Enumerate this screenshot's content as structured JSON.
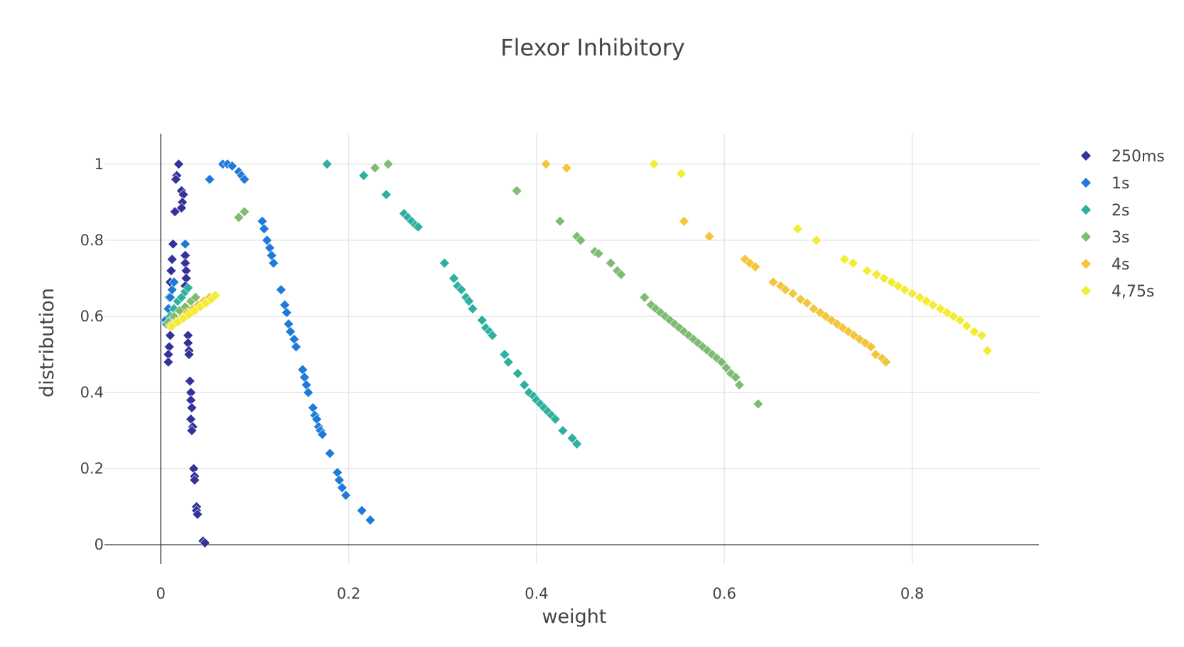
{
  "chart_data": {
    "type": "scatter",
    "title": "Flexor Inhibitory",
    "xlabel": "weight",
    "ylabel": "distribution",
    "xlim": [
      -0.06,
      0.935
    ],
    "ylim": [
      -0.05,
      1.08
    ],
    "xticks": [
      0,
      0.2,
      0.4,
      0.6,
      0.8
    ],
    "xtick_labels": [
      "0",
      "0.2",
      "0.4",
      "0.6",
      "0.8"
    ],
    "yticks": [
      0,
      0.2,
      0.4,
      0.6,
      0.8,
      1
    ],
    "ytick_labels": [
      "0",
      "0.2",
      "0.4",
      "0.6",
      "0.8",
      "1"
    ],
    "grid": true,
    "legend_position": "top-right",
    "marker": "diamond",
    "series": [
      {
        "name": "250ms",
        "color": "#33319a",
        "points": [
          [
            0.019,
            1.0
          ],
          [
            0.017,
            0.97
          ],
          [
            0.016,
            0.96
          ],
          [
            0.022,
            0.93
          ],
          [
            0.024,
            0.92
          ],
          [
            0.023,
            0.9
          ],
          [
            0.022,
            0.885
          ],
          [
            0.015,
            0.875
          ],
          [
            0.013,
            0.79
          ],
          [
            0.012,
            0.75
          ],
          [
            0.011,
            0.72
          ],
          [
            0.01,
            0.69
          ],
          [
            0.009,
            0.65
          ],
          [
            0.009,
            0.62
          ],
          [
            0.009,
            0.58
          ],
          [
            0.01,
            0.55
          ],
          [
            0.009,
            0.52
          ],
          [
            0.008,
            0.5
          ],
          [
            0.008,
            0.48
          ],
          [
            0.011,
            0.6
          ],
          [
            0.012,
            0.67
          ],
          [
            0.026,
            0.76
          ],
          [
            0.026,
            0.74
          ],
          [
            0.027,
            0.72
          ],
          [
            0.027,
            0.7
          ],
          [
            0.026,
            0.68
          ],
          [
            0.029,
            0.55
          ],
          [
            0.029,
            0.53
          ],
          [
            0.03,
            0.51
          ],
          [
            0.03,
            0.5
          ],
          [
            0.031,
            0.43
          ],
          [
            0.032,
            0.4
          ],
          [
            0.032,
            0.38
          ],
          [
            0.033,
            0.36
          ],
          [
            0.032,
            0.33
          ],
          [
            0.034,
            0.31
          ],
          [
            0.033,
            0.3
          ],
          [
            0.035,
            0.2
          ],
          [
            0.036,
            0.18
          ],
          [
            0.036,
            0.17
          ],
          [
            0.038,
            0.1
          ],
          [
            0.038,
            0.09
          ],
          [
            0.039,
            0.08
          ],
          [
            0.045,
            0.01
          ],
          [
            0.047,
            0.005
          ]
        ]
      },
      {
        "name": "1s",
        "color": "#1f7bd8",
        "points": [
          [
            0.052,
            0.96
          ],
          [
            0.066,
            1.0
          ],
          [
            0.071,
            1.0
          ],
          [
            0.076,
            0.995
          ],
          [
            0.083,
            0.98
          ],
          [
            0.086,
            0.97
          ],
          [
            0.089,
            0.96
          ],
          [
            0.108,
            0.85
          ],
          [
            0.11,
            0.83
          ],
          [
            0.113,
            0.8
          ],
          [
            0.116,
            0.78
          ],
          [
            0.118,
            0.76
          ],
          [
            0.12,
            0.74
          ],
          [
            0.128,
            0.67
          ],
          [
            0.132,
            0.63
          ],
          [
            0.134,
            0.61
          ],
          [
            0.136,
            0.58
          ],
          [
            0.138,
            0.56
          ],
          [
            0.142,
            0.54
          ],
          [
            0.144,
            0.52
          ],
          [
            0.151,
            0.46
          ],
          [
            0.153,
            0.44
          ],
          [
            0.155,
            0.42
          ],
          [
            0.157,
            0.4
          ],
          [
            0.162,
            0.36
          ],
          [
            0.164,
            0.34
          ],
          [
            0.166,
            0.33
          ],
          [
            0.168,
            0.31
          ],
          [
            0.17,
            0.3
          ],
          [
            0.172,
            0.29
          ],
          [
            0.18,
            0.24
          ],
          [
            0.188,
            0.19
          ],
          [
            0.19,
            0.17
          ],
          [
            0.193,
            0.15
          ],
          [
            0.197,
            0.13
          ],
          [
            0.214,
            0.09
          ],
          [
            0.223,
            0.065
          ],
          [
            0.005,
            0.59
          ],
          [
            0.008,
            0.62
          ],
          [
            0.01,
            0.65
          ],
          [
            0.012,
            0.67
          ],
          [
            0.014,
            0.69
          ],
          [
            0.026,
            0.79
          ]
        ]
      },
      {
        "name": "2s",
        "color": "#2db09e",
        "points": [
          [
            0.177,
            1.0
          ],
          [
            0.216,
            0.97
          ],
          [
            0.24,
            0.92
          ],
          [
            0.259,
            0.87
          ],
          [
            0.263,
            0.86
          ],
          [
            0.267,
            0.85
          ],
          [
            0.271,
            0.84
          ],
          [
            0.274,
            0.835
          ],
          [
            0.302,
            0.74
          ],
          [
            0.312,
            0.7
          ],
          [
            0.316,
            0.68
          ],
          [
            0.32,
            0.67
          ],
          [
            0.325,
            0.65
          ],
          [
            0.328,
            0.64
          ],
          [
            0.332,
            0.62
          ],
          [
            0.342,
            0.59
          ],
          [
            0.346,
            0.57
          ],
          [
            0.35,
            0.56
          ],
          [
            0.353,
            0.55
          ],
          [
            0.366,
            0.5
          ],
          [
            0.37,
            0.48
          ],
          [
            0.38,
            0.45
          ],
          [
            0.387,
            0.42
          ],
          [
            0.392,
            0.4
          ],
          [
            0.397,
            0.39
          ],
          [
            0.4,
            0.38
          ],
          [
            0.404,
            0.37
          ],
          [
            0.408,
            0.36
          ],
          [
            0.412,
            0.35
          ],
          [
            0.416,
            0.34
          ],
          [
            0.42,
            0.33
          ],
          [
            0.428,
            0.3
          ],
          [
            0.438,
            0.28
          ],
          [
            0.443,
            0.265
          ],
          [
            0.006,
            0.58
          ],
          [
            0.01,
            0.6
          ],
          [
            0.014,
            0.62
          ],
          [
            0.018,
            0.64
          ],
          [
            0.022,
            0.65
          ],
          [
            0.026,
            0.665
          ],
          [
            0.029,
            0.675
          ]
        ]
      },
      {
        "name": "3s",
        "color": "#7ebc73",
        "points": [
          [
            0.228,
            0.99
          ],
          [
            0.242,
            1.0
          ],
          [
            0.379,
            0.93
          ],
          [
            0.083,
            0.86
          ],
          [
            0.089,
            0.875
          ],
          [
            0.425,
            0.85
          ],
          [
            0.443,
            0.81
          ],
          [
            0.447,
            0.8
          ],
          [
            0.462,
            0.77
          ],
          [
            0.466,
            0.765
          ],
          [
            0.479,
            0.74
          ],
          [
            0.486,
            0.72
          ],
          [
            0.49,
            0.71
          ],
          [
            0.515,
            0.65
          ],
          [
            0.522,
            0.63
          ],
          [
            0.527,
            0.62
          ],
          [
            0.532,
            0.61
          ],
          [
            0.537,
            0.6
          ],
          [
            0.542,
            0.59
          ],
          [
            0.547,
            0.58
          ],
          [
            0.552,
            0.57
          ],
          [
            0.557,
            0.56
          ],
          [
            0.562,
            0.55
          ],
          [
            0.567,
            0.54
          ],
          [
            0.572,
            0.53
          ],
          [
            0.577,
            0.52
          ],
          [
            0.582,
            0.51
          ],
          [
            0.587,
            0.5
          ],
          [
            0.592,
            0.49
          ],
          [
            0.597,
            0.48
          ],
          [
            0.602,
            0.465
          ],
          [
            0.607,
            0.45
          ],
          [
            0.612,
            0.44
          ],
          [
            0.616,
            0.42
          ],
          [
            0.636,
            0.37
          ],
          [
            0.008,
            0.585
          ],
          [
            0.014,
            0.6
          ],
          [
            0.02,
            0.615
          ],
          [
            0.026,
            0.625
          ],
          [
            0.032,
            0.64
          ],
          [
            0.037,
            0.65
          ]
        ]
      },
      {
        "name": "4s",
        "color": "#f3c63b",
        "points": [
          [
            0.41,
            1.0
          ],
          [
            0.432,
            0.99
          ],
          [
            0.557,
            0.85
          ],
          [
            0.584,
            0.81
          ],
          [
            0.622,
            0.75
          ],
          [
            0.627,
            0.74
          ],
          [
            0.633,
            0.73
          ],
          [
            0.652,
            0.69
          ],
          [
            0.66,
            0.68
          ],
          [
            0.665,
            0.67
          ],
          [
            0.673,
            0.66
          ],
          [
            0.681,
            0.645
          ],
          [
            0.688,
            0.635
          ],
          [
            0.695,
            0.62
          ],
          [
            0.702,
            0.61
          ],
          [
            0.708,
            0.6
          ],
          [
            0.714,
            0.59
          ],
          [
            0.72,
            0.58
          ],
          [
            0.726,
            0.57
          ],
          [
            0.732,
            0.56
          ],
          [
            0.738,
            0.55
          ],
          [
            0.744,
            0.54
          ],
          [
            0.75,
            0.53
          ],
          [
            0.756,
            0.52
          ],
          [
            0.761,
            0.5
          ],
          [
            0.768,
            0.49
          ],
          [
            0.772,
            0.48
          ],
          [
            0.01,
            0.575
          ],
          [
            0.016,
            0.585
          ],
          [
            0.022,
            0.595
          ],
          [
            0.028,
            0.61
          ],
          [
            0.034,
            0.62
          ],
          [
            0.04,
            0.63
          ],
          [
            0.046,
            0.64
          ],
          [
            0.052,
            0.65
          ]
        ]
      },
      {
        "name": "4,75s",
        "color": "#f4eb35",
        "points": [
          [
            0.525,
            1.0
          ],
          [
            0.554,
            0.975
          ],
          [
            0.678,
            0.83
          ],
          [
            0.698,
            0.8
          ],
          [
            0.728,
            0.75
          ],
          [
            0.737,
            0.74
          ],
          [
            0.752,
            0.72
          ],
          [
            0.762,
            0.71
          ],
          [
            0.77,
            0.7
          ],
          [
            0.778,
            0.69
          ],
          [
            0.785,
            0.68
          ],
          [
            0.792,
            0.67
          ],
          [
            0.8,
            0.66
          ],
          [
            0.808,
            0.65
          ],
          [
            0.815,
            0.64
          ],
          [
            0.822,
            0.63
          ],
          [
            0.83,
            0.62
          ],
          [
            0.837,
            0.61
          ],
          [
            0.844,
            0.6
          ],
          [
            0.851,
            0.59
          ],
          [
            0.858,
            0.575
          ],
          [
            0.866,
            0.56
          ],
          [
            0.874,
            0.55
          ],
          [
            0.88,
            0.51
          ],
          [
            0.012,
            0.575
          ],
          [
            0.018,
            0.585
          ],
          [
            0.024,
            0.595
          ],
          [
            0.03,
            0.605
          ],
          [
            0.036,
            0.615
          ],
          [
            0.042,
            0.625
          ],
          [
            0.048,
            0.635
          ],
          [
            0.054,
            0.645
          ],
          [
            0.058,
            0.655
          ]
        ]
      }
    ]
  }
}
